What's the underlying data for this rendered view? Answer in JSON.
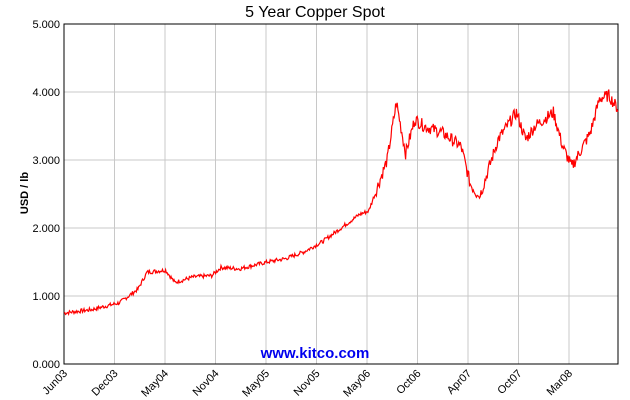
{
  "chart_data": {
    "type": "line",
    "title": "5 Year Copper Spot",
    "xlabel": "",
    "ylabel": "USD / lb",
    "ylim": [
      0,
      5
    ],
    "yticks": [
      "0.000",
      "1.000",
      "2.000",
      "3.000",
      "4.000",
      "5.000"
    ],
    "xticks": [
      "Jun03",
      "Dec03",
      "May04",
      "Nov04",
      "May05",
      "Nov05",
      "May06",
      "Oct06",
      "Apr07",
      "Oct07",
      "Mar08"
    ],
    "grid": true,
    "legend": "none",
    "line_color": "#ff0000",
    "watermark": "www.kitco.com",
    "series": [
      {
        "x": [
          "2003-05",
          "2003-08",
          "2003-11",
          "2004-01",
          "2004-02",
          "2004-04",
          "2004-05",
          "2004-07",
          "2004-09",
          "2004-10",
          "2004-12",
          "2005-03",
          "2005-05",
          "2005-07",
          "2005-09",
          "2005-11",
          "2006-01",
          "2006-02",
          "2006-04",
          "2006-05",
          "2006-06",
          "2006-07",
          "2006-08",
          "2006-10",
          "2006-12",
          "2007-01",
          "2007-02",
          "2007-04",
          "2007-06",
          "2007-07",
          "2007-08",
          "2007-10",
          "2007-11",
          "2007-12",
          "2008-02",
          "2008-03",
          "2008-04",
          "2008-05"
        ],
        "values": [
          0.75,
          0.8,
          0.9,
          1.1,
          1.35,
          1.38,
          1.2,
          1.28,
          1.3,
          1.42,
          1.4,
          1.5,
          1.55,
          1.65,
          1.8,
          2.0,
          2.2,
          2.25,
          3.0,
          3.85,
          3.1,
          3.6,
          3.5,
          3.4,
          3.2,
          2.65,
          2.45,
          3.3,
          3.7,
          3.3,
          3.5,
          3.7,
          3.2,
          2.9,
          3.4,
          3.9,
          3.95,
          3.75
        ]
      }
    ]
  }
}
